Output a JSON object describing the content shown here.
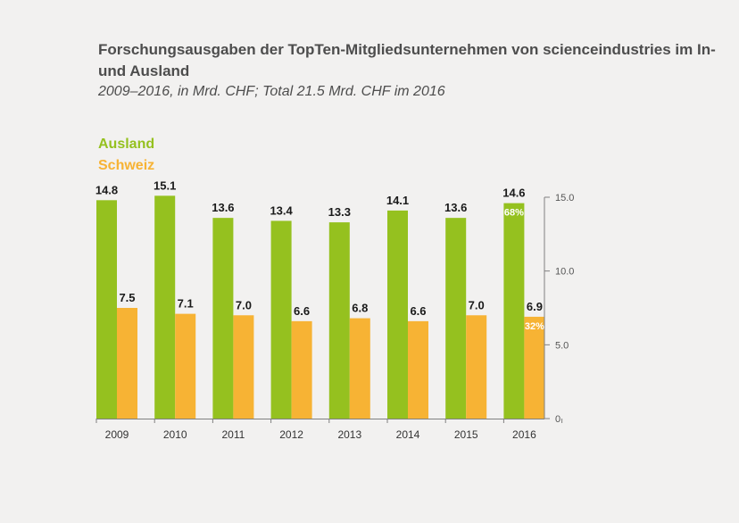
{
  "title": "Forschungsausgaben der TopTen-Mitgliedsunternehmen von scienceindustries im In- und Ausland",
  "subtitle": "2009–2016, in Mrd. CHF; Total 21.5 Mrd. CHF im 2016",
  "colors": {
    "ausland": "#95c11f",
    "schweiz": "#f7b334",
    "text": "#4d4d4d",
    "axis": "#808080"
  },
  "chart_data": {
    "type": "bar",
    "categories": [
      "2009",
      "2010",
      "2011",
      "2012",
      "2013",
      "2014",
      "2015",
      "2016"
    ],
    "series": [
      {
        "name": "Ausland",
        "values": [
          14.8,
          15.1,
          13.6,
          13.4,
          13.3,
          14.1,
          13.6,
          14.6
        ]
      },
      {
        "name": "Schweiz",
        "values": [
          7.5,
          7.1,
          7.0,
          6.6,
          6.8,
          6.6,
          7.0,
          6.9
        ]
      }
    ],
    "value_labels": {
      "Ausland": [
        "14.8",
        "15.1",
        "13.6",
        "13.4",
        "13.3",
        "14.1",
        "13.6",
        "14.6"
      ],
      "Schweiz": [
        "7.5",
        "7.1",
        "7.0",
        "6.6",
        "6.8",
        "6.6",
        "7.0",
        "6.9"
      ]
    },
    "annotations": [
      {
        "series": "Ausland",
        "category": "2016",
        "text": "68%"
      },
      {
        "series": "Schweiz",
        "category": "2016",
        "text": "32%"
      }
    ],
    "y_axis": {
      "side": "right",
      "ticks": [
        0,
        5,
        10,
        15
      ],
      "tick_labels": [
        "0",
        "5.0",
        "10.0",
        "15.0"
      ],
      "ylim": [
        0,
        15
      ]
    },
    "legend_placement": "top-left",
    "grid": false
  }
}
